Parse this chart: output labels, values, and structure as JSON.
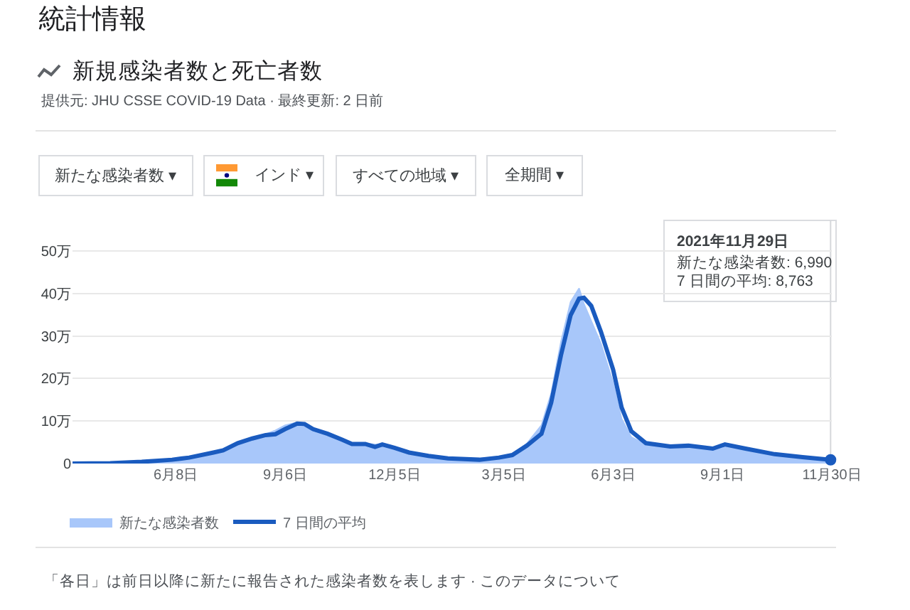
{
  "chart_data": {
    "type": "area",
    "title": "統計情報",
    "subtitle": "新規感染者数と死亡者数",
    "annotations": [
      "提供元: JHU CSSE COVID-19 Data · 最終更新: 2 日前",
      "新たな感染者数 ▾",
      "インド ▾",
      "すべての地域 ▾",
      "全期間 ▾",
      "「各日」は前日以降に新たに報告された感染者数を表します · このデータについて",
      "2021年11月29日",
      "新たな感染者数: 6,990",
      "7 日間の平均: 8,763"
    ],
    "x": [
      "2020-03-15",
      "2020-04-15",
      "2020-05-11",
      "2020-06-05",
      "2020-06-19",
      "2020-07-09",
      "2020-07-17",
      "2020-07-29",
      "2020-08-10",
      "2020-08-21",
      "2020-08-29",
      "2020-09-06",
      "2020-09-16",
      "2020-09-22",
      "2020-09-29",
      "2020-10-11",
      "2020-10-23",
      "2020-10-31",
      "2020-11-11",
      "2020-11-19",
      "2020-11-25",
      "2020-12-05",
      "2020-12-17",
      "2021-01-02",
      "2021-01-18",
      "2021-02-13",
      "2021-03-01",
      "2021-03-12",
      "2021-03-24",
      "2021-04-05",
      "2021-04-13",
      "2021-04-21",
      "2021-04-29",
      "2021-05-06",
      "2021-05-10",
      "2021-05-16",
      "2021-05-24",
      "2021-06-03",
      "2021-06-10",
      "2021-06-18",
      "2021-06-30",
      "2021-07-20",
      "2021-08-04",
      "2021-08-24",
      "2021-09-03",
      "2021-09-20",
      "2021-10-14",
      "2021-11-06",
      "2021-11-29"
    ],
    "series": [
      {
        "name": "新たな感染者数",
        "color": "#a8c7fa",
        "values": [
          0,
          0.1,
          0.4,
          1.0,
          1.5,
          2.7,
          3.4,
          4.9,
          5.6,
          6.9,
          7.8,
          9.0,
          9.7,
          8.6,
          8.0,
          6.7,
          5.4,
          4.8,
          4.7,
          4.5,
          4.4,
          3.6,
          2.2,
          1.9,
          1.0,
          1.2,
          1.5,
          2.3,
          4.7,
          9.0,
          16.5,
          28.5,
          38.0,
          41.2,
          37.5,
          33.5,
          28.2,
          19.0,
          10.5,
          6.2,
          4.5,
          3.8,
          4.3,
          3.7,
          4.6,
          3.0,
          1.8,
          1.1,
          0.699
        ]
      },
      {
        "name": "7 日間の平均",
        "type": "line",
        "color": "#1a5bbf",
        "values": [
          0,
          0.1,
          0.4,
          0.9,
          1.4,
          2.6,
          3.1,
          4.8,
          5.9,
          6.7,
          6.9,
          8.1,
          9.4,
          9.3,
          8.1,
          7.0,
          5.6,
          4.6,
          4.6,
          3.9,
          4.5,
          3.7,
          2.6,
          1.8,
          1.2,
          0.9,
          1.4,
          2.0,
          4.2,
          7.0,
          14.3,
          25.4,
          34.9,
          38.8,
          39.0,
          37.1,
          31.0,
          22.1,
          13.2,
          7.6,
          4.8,
          4.0,
          4.2,
          3.5,
          4.5,
          3.5,
          2.2,
          1.5,
          0.8763
        ]
      },
      {
        "type": "scatter",
        "x": [
          "2021-11-29"
        ],
        "color": "#1a5bbf",
        "values": [
          0.8763
        ]
      }
    ],
    "xlim": [
      "2020-03-15",
      "2021-11-30"
    ],
    "xticks": [
      {
        "value": "2020-06-08",
        "label": "6月8日"
      },
      {
        "value": "2020-09-06",
        "label": "9月6日"
      },
      {
        "value": "2020-12-05",
        "label": "12月5日"
      },
      {
        "value": "2021-03-05",
        "label": "3月5日"
      },
      {
        "value": "2021-06-03",
        "label": "6月3日"
      },
      {
        "value": "2021-09-01",
        "label": "9月1日"
      },
      {
        "value": "2021-11-30",
        "label": "11月30日"
      }
    ],
    "ylim": [
      0,
      50.5
    ],
    "yticks": [
      0,
      {
        "value": 10,
        "label": "10万"
      },
      {
        "value": 20,
        "label": "20万"
      },
      {
        "value": 30,
        "label": "30万"
      },
      {
        "value": 40,
        "label": "40万"
      },
      {
        "value": 50,
        "label": "50万"
      }
    ],
    "ref_lines": [
      {
        "axis": "x",
        "value": "2021-11-29",
        "color": "#d5d7db"
      }
    ],
    "grid": "y",
    "legend": "bottom left"
  }
}
